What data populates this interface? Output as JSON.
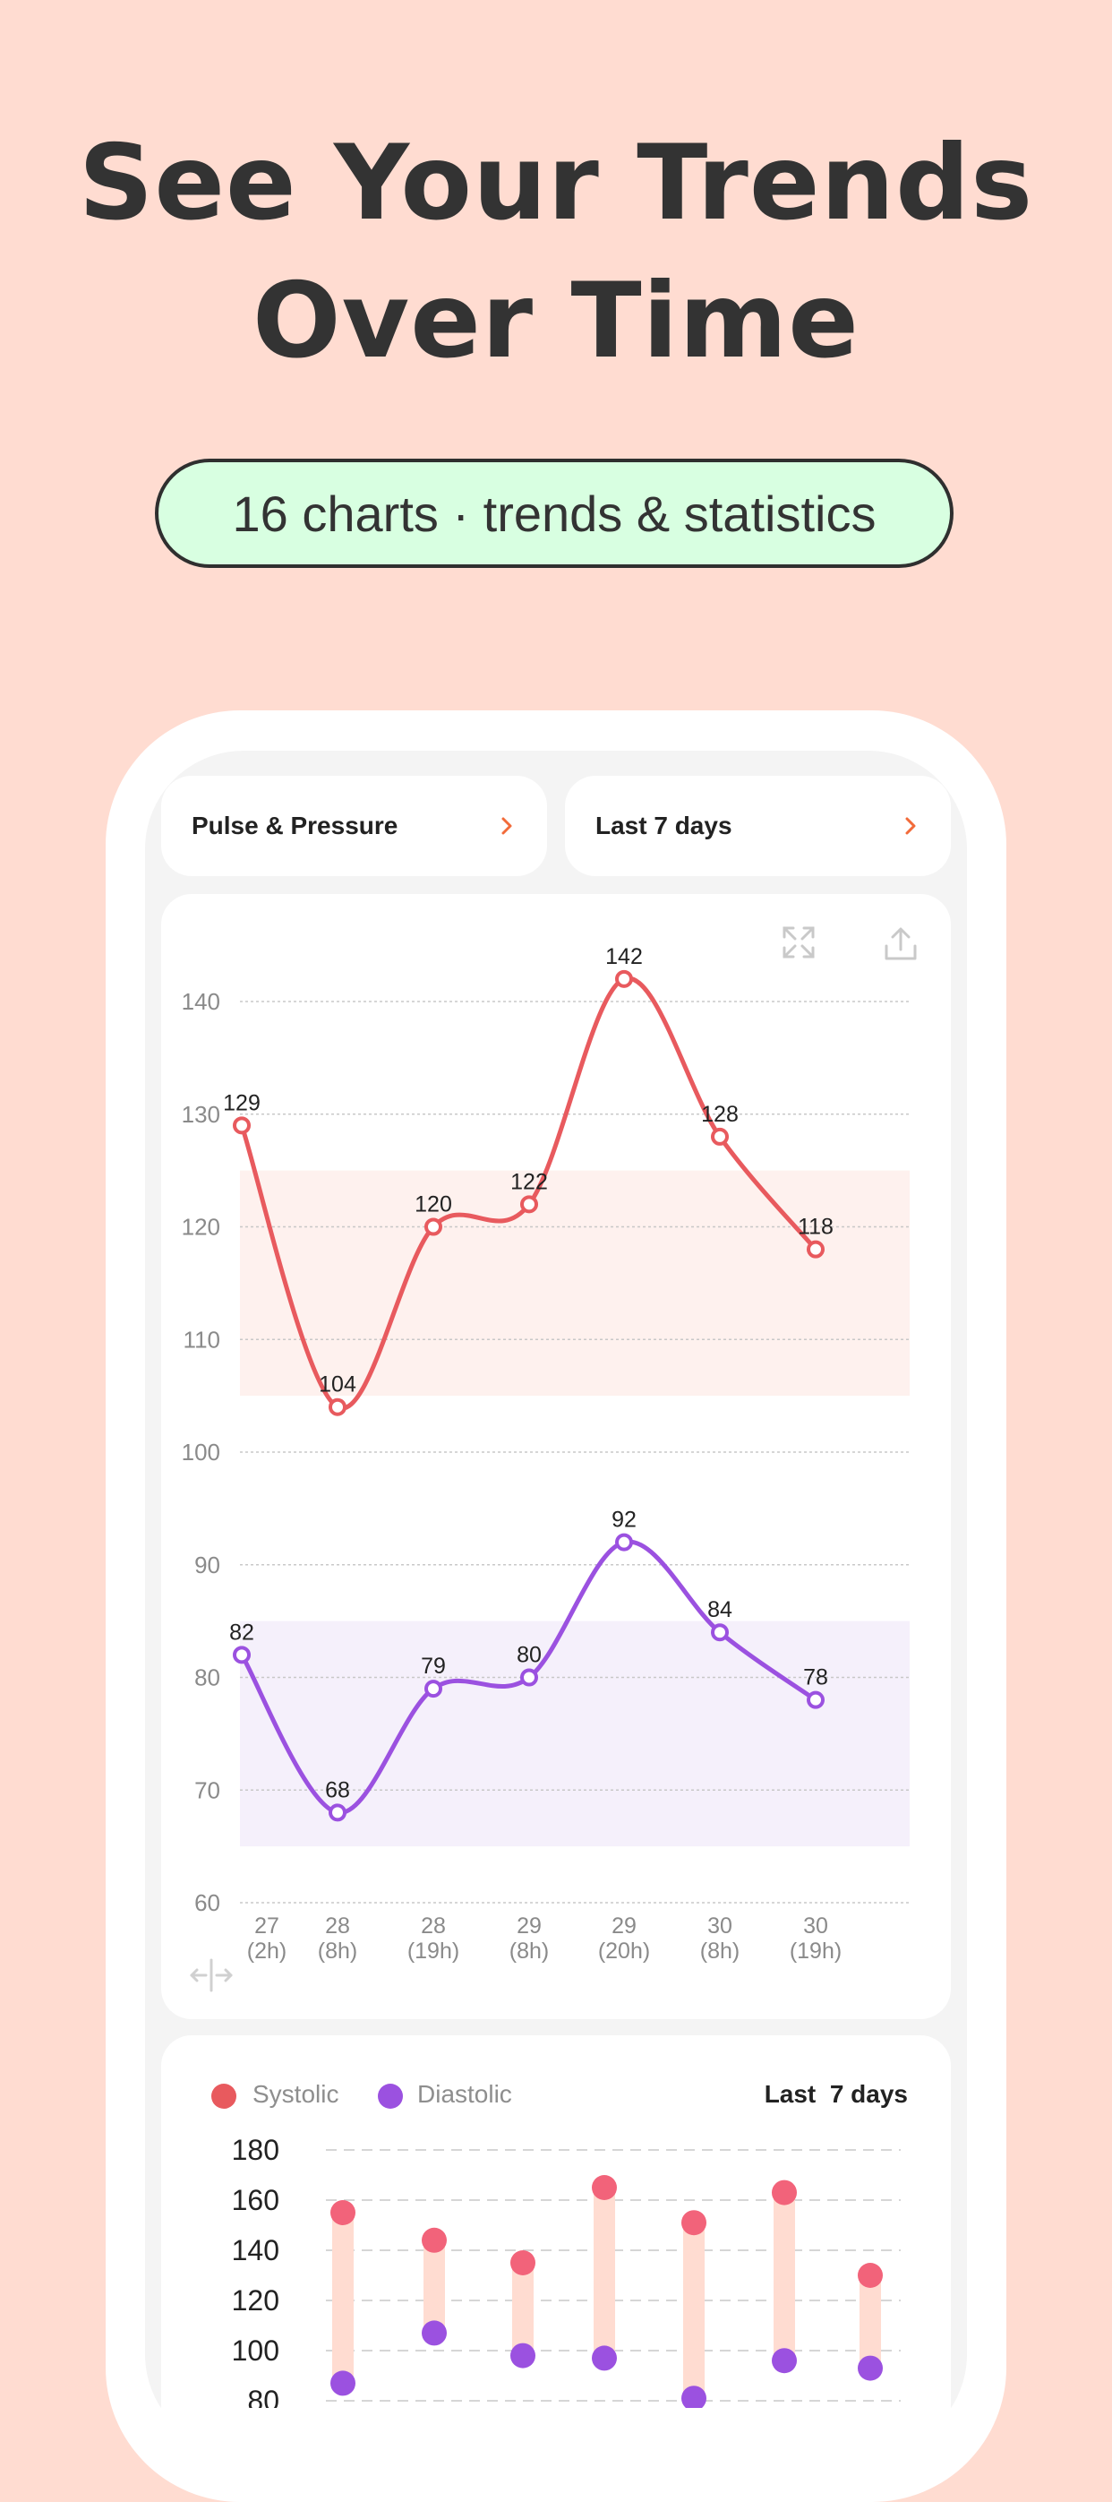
{
  "headline": {
    "line1": "See Your Trends",
    "line2": "Over Time"
  },
  "badge": "16 charts · trends & statistics",
  "selectors": {
    "metric": "Pulse & Pressure",
    "period": "Last 7 days"
  },
  "colors": {
    "systolic": "#E85A5E",
    "diastolic": "#9B51E0",
    "accent": "#F26B3A",
    "badge_bg": "#D8FFE1",
    "page_bg": "#FFDCD1"
  },
  "icons": {
    "expand": "expand-icon",
    "share": "share-icon",
    "fit": "fit-width-icon"
  },
  "chart_data": [
    {
      "type": "line",
      "x_labels": [
        [
          "27",
          "(2h)"
        ],
        [
          "28",
          "(8h)"
        ],
        [
          "28",
          "(19h)"
        ],
        [
          "29",
          "(8h)"
        ],
        [
          "29",
          "(20h)"
        ],
        [
          "30",
          "(8h)"
        ],
        [
          "30",
          "(19h)"
        ]
      ],
      "y_ticks": [
        140,
        130,
        120,
        110,
        100,
        90,
        80,
        70,
        60
      ],
      "ylim": [
        60,
        145
      ],
      "grid": true,
      "series": [
        {
          "values": [
            129,
            104,
            120,
            122,
            142,
            128,
            118
          ],
          "normal_range": [
            105,
            125
          ]
        },
        {
          "values": [
            82,
            68,
            79,
            80,
            92,
            84,
            78
          ],
          "normal_range": [
            65,
            85
          ]
        }
      ]
    },
    {
      "type": "range-bar",
      "legend": [
        "Systolic",
        "Diastolic"
      ],
      "period_label": "Last  7 days",
      "y_ticks": [
        180,
        160,
        140,
        120,
        100,
        80
      ],
      "ylim": [
        80,
        180
      ],
      "series": [
        {
          "name": "Systolic",
          "values": [
            155,
            144,
            135,
            165,
            151,
            163,
            130
          ]
        },
        {
          "name": "Diastolic",
          "values": [
            87,
            107,
            98,
            97,
            81,
            96,
            93
          ]
        }
      ]
    }
  ]
}
